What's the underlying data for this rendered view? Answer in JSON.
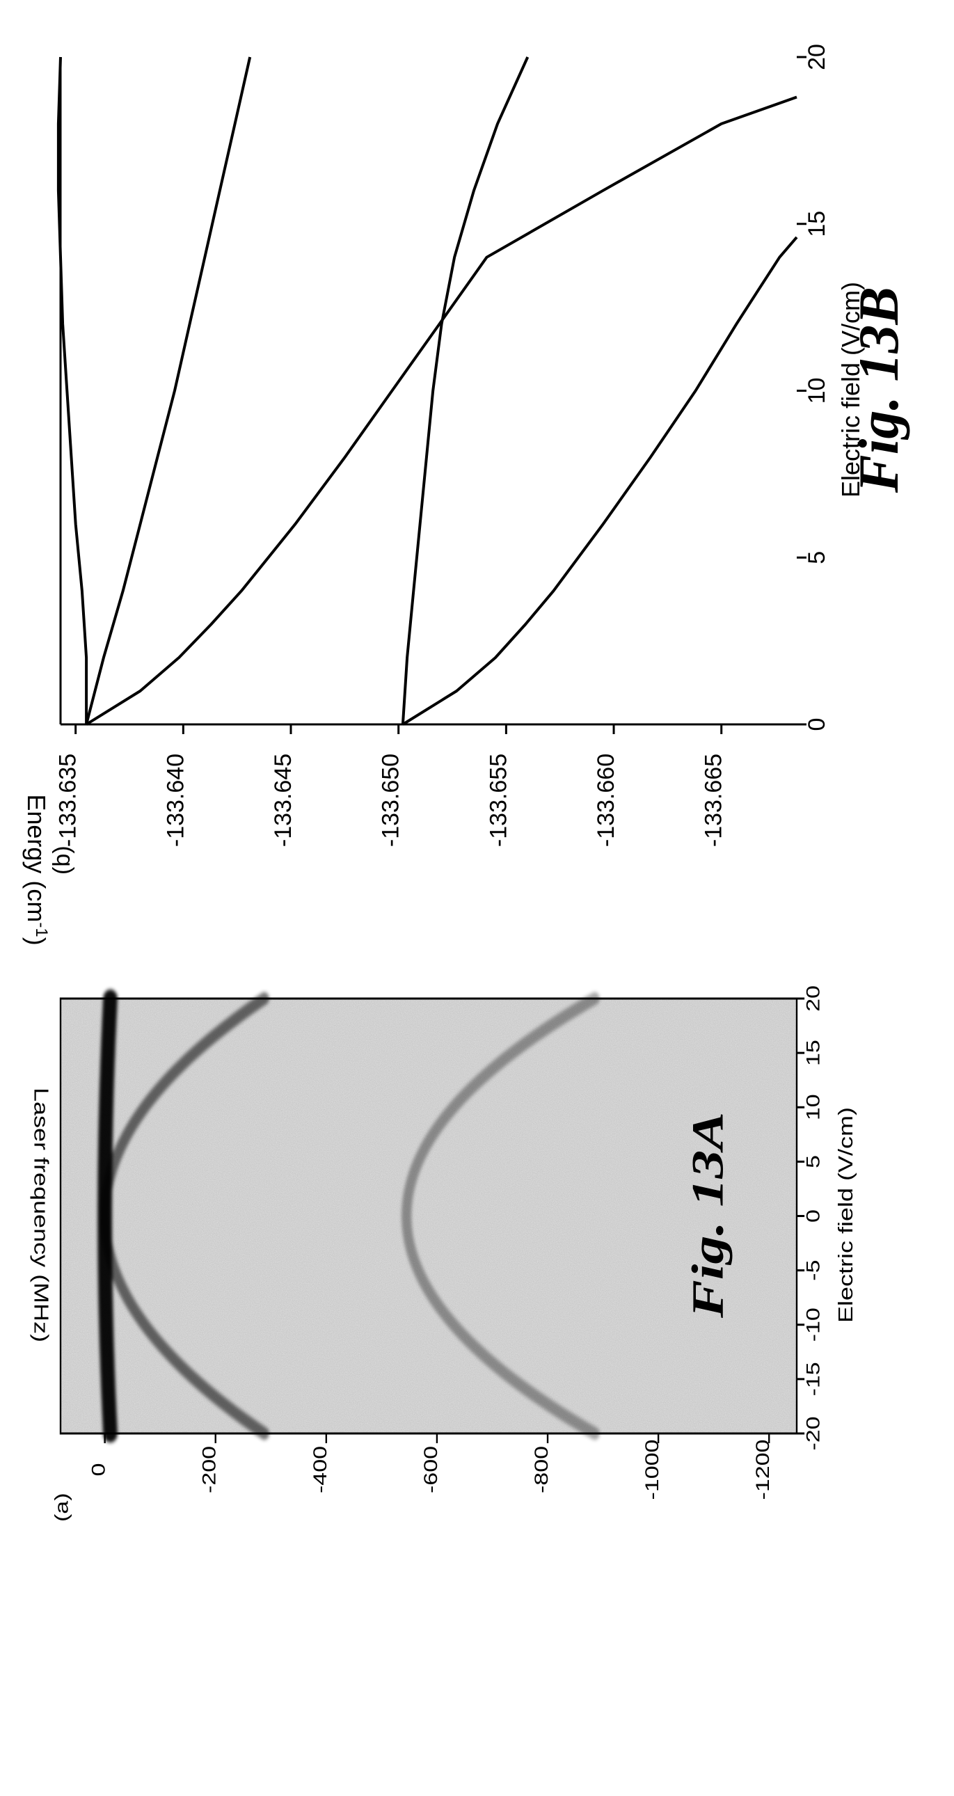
{
  "figures": {
    "a": {
      "panel_label": "(a)",
      "caption": "Fig. 13A"
    },
    "b": {
      "panel_label": "(b)",
      "caption": "Fig. 13B"
    }
  },
  "colors": {
    "ink": "#000000",
    "background": "#ffffff",
    "plot_background": "#e3e3e3"
  },
  "chart_data": [
    {
      "id": "a",
      "type": "heatmap",
      "xlabel": "Electric field (V/cm)",
      "ylabel": "Laser frequency (MHz)",
      "xlim": [
        -20,
        20
      ],
      "ylim": [
        -1250,
        80
      ],
      "x_ticks": [
        -20,
        -15,
        -10,
        -5,
        0,
        5,
        10,
        15,
        20
      ],
      "y_ticks": [
        0,
        -200,
        -400,
        -600,
        -800,
        -1000,
        -1200
      ],
      "grid": false,
      "features": [
        {
          "name": "central",
          "y0": 0,
          "k": -0.025,
          "darkness": 0.95
        },
        {
          "name": "outer-upper",
          "y0": 0,
          "k": -0.72,
          "darkness": 0.55
        },
        {
          "name": "inner-lower",
          "y0": -545,
          "k": -0.85,
          "darkness": 0.35
        }
      ]
    },
    {
      "id": "b",
      "type": "line",
      "xlabel": "Electric field (V/cm)",
      "ylabel": "Energy (cm",
      "ylabel_sup": "-1",
      "ylabel_end": ")",
      "xlim": [
        0,
        20
      ],
      "ylim": [
        -133.6685,
        -133.6343
      ],
      "x_ticks": [
        0,
        5,
        10,
        15,
        20
      ],
      "y_ticks": [
        -133.635,
        -133.64,
        -133.645,
        -133.65,
        -133.655,
        -133.66,
        -133.665
      ],
      "grid": false,
      "series": [
        {
          "x": [
            0,
            2,
            4,
            6,
            8,
            10,
            12,
            14,
            16,
            18,
            20
          ],
          "y": [
            -133.6355,
            -133.6355,
            -133.6353,
            -133.635,
            -133.6348,
            -133.6346,
            -133.6344,
            -133.6343,
            -133.6342,
            -133.6342,
            -133.6343
          ]
        },
        {
          "x": [
            0,
            2,
            4,
            6,
            8,
            10,
            12,
            14,
            16,
            18,
            20
          ],
          "y": [
            -133.6355,
            -133.6363,
            -133.6372,
            -133.638,
            -133.6388,
            -133.6396,
            -133.6403,
            -133.641,
            -133.6417,
            -133.6424,
            -133.6431
          ]
        },
        {
          "x": [
            0,
            1,
            2,
            3,
            4,
            6,
            8,
            10,
            12,
            14,
            16,
            18,
            18.8
          ],
          "y": [
            -133.6355,
            -133.638,
            -133.6398,
            -133.6413,
            -133.6427,
            -133.6452,
            -133.6475,
            -133.6497,
            -133.6519,
            -133.6541,
            -133.6595,
            -133.665,
            -133.6685
          ]
        },
        {
          "x": [
            0,
            2,
            4,
            6,
            8,
            10,
            12,
            14,
            16,
            18,
            20
          ],
          "y": [
            -133.6502,
            -133.6504,
            -133.6507,
            -133.651,
            -133.6513,
            -133.6516,
            -133.652,
            -133.6526,
            -133.6535,
            -133.6546,
            -133.656
          ]
        },
        {
          "x": [
            0,
            1,
            2,
            3,
            4,
            6,
            8,
            10,
            12,
            13,
            14,
            14.6
          ],
          "y": [
            -133.6502,
            -133.6527,
            -133.6545,
            -133.6559,
            -133.6572,
            -133.6595,
            -133.6617,
            -133.6638,
            -133.6657,
            -133.6667,
            -133.6677,
            -133.6685
          ]
        }
      ]
    }
  ]
}
